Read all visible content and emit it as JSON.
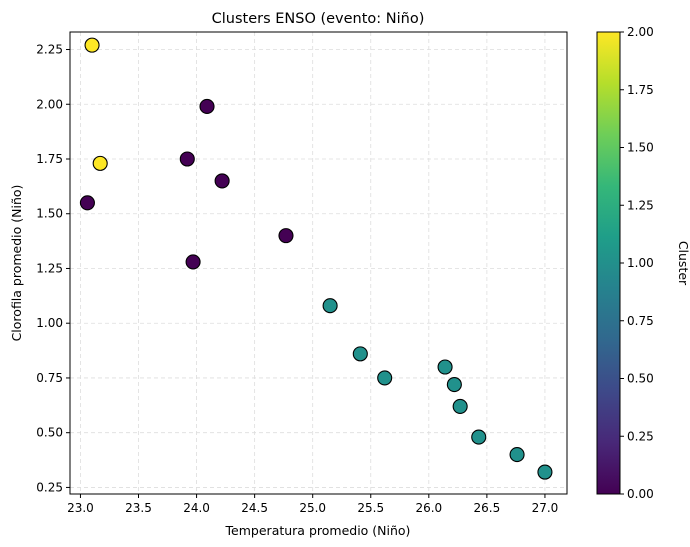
{
  "chart_data": {
    "type": "scatter",
    "title": "Clusters ENSO (evento: Niño)",
    "xlabel": "Temperatura promedio (Niño)",
    "ylabel": "Clorofila promedio (Niño)",
    "xlim": [
      22.91,
      27.19
    ],
    "ylim": [
      0.22,
      2.33
    ],
    "xticks": [
      23.0,
      23.5,
      24.0,
      24.5,
      25.0,
      25.5,
      26.0,
      26.5,
      27.0
    ],
    "yticks": [
      0.25,
      0.5,
      0.75,
      1.0,
      1.25,
      1.5,
      1.75,
      2.0,
      2.25
    ],
    "xtick_labels": [
      "23.0",
      "23.5",
      "24.0",
      "24.5",
      "25.0",
      "25.5",
      "26.0",
      "26.5",
      "27.0"
    ],
    "ytick_labels": [
      "0.25",
      "0.50",
      "0.75",
      "1.00",
      "1.25",
      "1.50",
      "1.75",
      "2.00",
      "2.25"
    ],
    "grid": true,
    "colormap": "viridis",
    "colorbar": {
      "label": "Cluster",
      "range": [
        0,
        2
      ],
      "ticks": [
        0.0,
        0.25,
        0.5,
        0.75,
        1.0,
        1.25,
        1.5,
        1.75,
        2.0
      ],
      "tick_labels": [
        "0.00",
        "0.25",
        "0.50",
        "0.75",
        "1.00",
        "1.25",
        "1.50",
        "1.75",
        "2.00"
      ]
    },
    "points": [
      {
        "x": 23.1,
        "y": 2.27,
        "cluster": 2
      },
      {
        "x": 23.17,
        "y": 1.73,
        "cluster": 2
      },
      {
        "x": 23.06,
        "y": 1.55,
        "cluster": 0
      },
      {
        "x": 23.92,
        "y": 1.75,
        "cluster": 0
      },
      {
        "x": 24.09,
        "y": 1.99,
        "cluster": 0
      },
      {
        "x": 24.22,
        "y": 1.65,
        "cluster": 0
      },
      {
        "x": 23.97,
        "y": 1.28,
        "cluster": 0
      },
      {
        "x": 24.77,
        "y": 1.4,
        "cluster": 0
      },
      {
        "x": 25.15,
        "y": 1.08,
        "cluster": 1
      },
      {
        "x": 25.41,
        "y": 0.86,
        "cluster": 1
      },
      {
        "x": 25.62,
        "y": 0.75,
        "cluster": 1
      },
      {
        "x": 26.14,
        "y": 0.8,
        "cluster": 1
      },
      {
        "x": 26.22,
        "y": 0.72,
        "cluster": 1
      },
      {
        "x": 26.27,
        "y": 0.62,
        "cluster": 1
      },
      {
        "x": 26.43,
        "y": 0.48,
        "cluster": 1
      },
      {
        "x": 26.76,
        "y": 0.4,
        "cluster": 1
      },
      {
        "x": 27.0,
        "y": 0.32,
        "cluster": 1
      }
    ]
  },
  "colors": {
    "cluster_0": "#440154",
    "cluster_1": "#21918c",
    "cluster_2": "#fde725",
    "viridis_stops": [
      "#440154",
      "#482878",
      "#3e4989",
      "#31688e",
      "#26828e",
      "#1f9e89",
      "#35b779",
      "#6ece58",
      "#b5de2b",
      "#fde725"
    ],
    "grid": "#dddddd",
    "marker_edge": "#000000"
  }
}
